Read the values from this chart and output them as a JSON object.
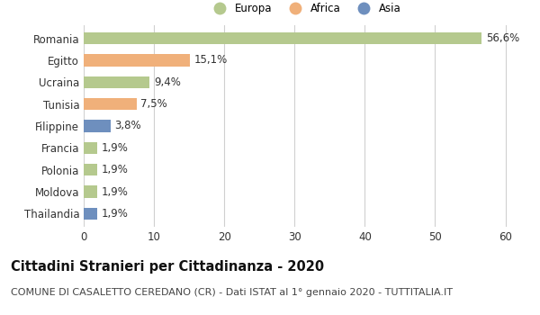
{
  "categories": [
    "Romania",
    "Egitto",
    "Ucraina",
    "Tunisia",
    "Filippine",
    "Francia",
    "Polonia",
    "Moldova",
    "Thailandia"
  ],
  "values": [
    56.6,
    15.1,
    9.4,
    7.5,
    3.8,
    1.9,
    1.9,
    1.9,
    1.9
  ],
  "labels": [
    "56,6%",
    "15,1%",
    "9,4%",
    "7,5%",
    "3,8%",
    "1,9%",
    "1,9%",
    "1,9%",
    "1,9%"
  ],
  "continents": [
    "Europa",
    "Africa",
    "Europa",
    "Africa",
    "Asia",
    "Europa",
    "Europa",
    "Europa",
    "Asia"
  ],
  "colors": {
    "Europa": "#b5c98e",
    "Africa": "#f0b07a",
    "Asia": "#6e8fbe"
  },
  "legend_items": [
    "Europa",
    "Africa",
    "Asia"
  ],
  "legend_colors": [
    "#b5c98e",
    "#f0b07a",
    "#6e8fbe"
  ],
  "xlim": [
    0,
    63
  ],
  "xticks": [
    0,
    10,
    20,
    30,
    40,
    50,
    60
  ],
  "title_bold": "Cittadini Stranieri per Cittadinanza - 2020",
  "subtitle": "COMUNE DI CASALETTO CEREDANO (CR) - Dati ISTAT al 1° gennaio 2020 - TUTTITALIA.IT",
  "background_color": "#ffffff",
  "grid_color": "#d0d0d0",
  "bar_height": 0.55,
  "label_fontsize": 8.5,
  "tick_fontsize": 8.5,
  "title_fontsize": 10.5,
  "subtitle_fontsize": 8.0
}
